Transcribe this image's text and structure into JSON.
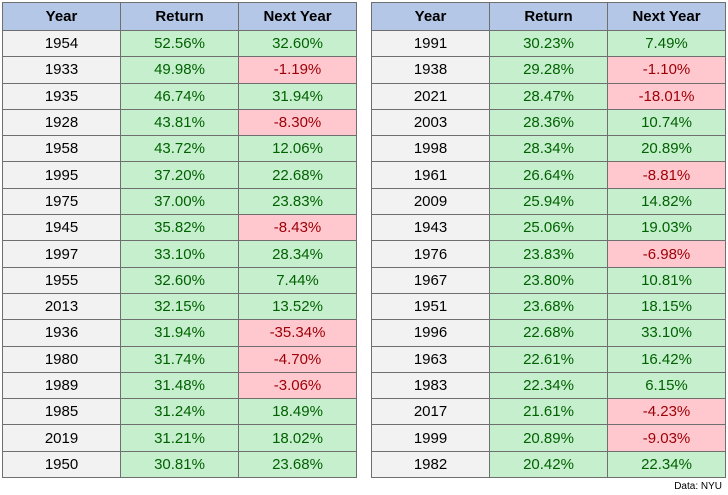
{
  "tables": [
    {
      "header": [
        "Year",
        "Return",
        "Next Year"
      ],
      "rows": [
        [
          "1954",
          "52.56%",
          "32.60%"
        ],
        [
          "1933",
          "49.98%",
          "-1.19%"
        ],
        [
          "1935",
          "46.74%",
          "31.94%"
        ],
        [
          "1928",
          "43.81%",
          "-8.30%"
        ],
        [
          "1958",
          "43.72%",
          "12.06%"
        ],
        [
          "1995",
          "37.20%",
          "22.68%"
        ],
        [
          "1975",
          "37.00%",
          "23.83%"
        ],
        [
          "1945",
          "35.82%",
          "-8.43%"
        ],
        [
          "1997",
          "33.10%",
          "28.34%"
        ],
        [
          "1955",
          "32.60%",
          "7.44%"
        ],
        [
          "2013",
          "32.15%",
          "13.52%"
        ],
        [
          "1936",
          "31.94%",
          "-35.34%"
        ],
        [
          "1980",
          "31.74%",
          "-4.70%"
        ],
        [
          "1989",
          "31.48%",
          "-3.06%"
        ],
        [
          "1985",
          "31.24%",
          "18.49%"
        ],
        [
          "2019",
          "31.21%",
          "18.02%"
        ],
        [
          "1950",
          "30.81%",
          "23.68%"
        ]
      ]
    },
    {
      "header": [
        "Year",
        "Return",
        "Next Year"
      ],
      "rows": [
        [
          "1991",
          "30.23%",
          "7.49%"
        ],
        [
          "1938",
          "29.28%",
          "-1.10%"
        ],
        [
          "2021",
          "28.47%",
          "-18.01%"
        ],
        [
          "2003",
          "28.36%",
          "10.74%"
        ],
        [
          "1998",
          "28.34%",
          "20.89%"
        ],
        [
          "1961",
          "26.64%",
          "-8.81%"
        ],
        [
          "2009",
          "25.94%",
          "14.82%"
        ],
        [
          "1943",
          "25.06%",
          "19.03%"
        ],
        [
          "1976",
          "23.83%",
          "-6.98%"
        ],
        [
          "1967",
          "23.80%",
          "10.81%"
        ],
        [
          "1951",
          "23.68%",
          "18.15%"
        ],
        [
          "1996",
          "22.68%",
          "33.10%"
        ],
        [
          "1963",
          "22.61%",
          "16.42%"
        ],
        [
          "1983",
          "22.34%",
          "6.15%"
        ],
        [
          "2017",
          "21.61%",
          "-4.23%"
        ],
        [
          "1999",
          "20.89%",
          "-9.03%"
        ],
        [
          "1982",
          "20.42%",
          "22.34%"
        ]
      ]
    }
  ],
  "source": "Data: NYU"
}
